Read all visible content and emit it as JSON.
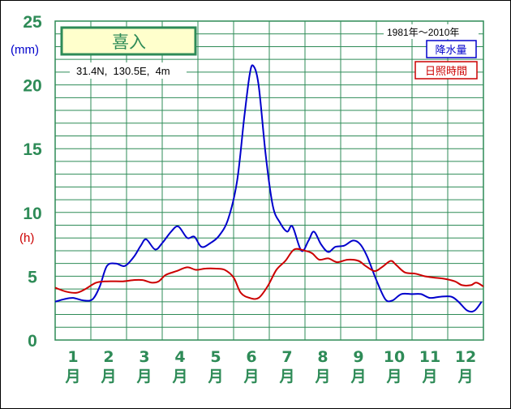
{
  "chart_data": {
    "type": "line",
    "station": "喜入",
    "coordinates": "31.4N,  130.5E,  4m",
    "period": "1981年～2010年",
    "y_unit_primary": "(mm)",
    "y_unit_secondary": "(h)",
    "ylim": [
      0,
      25
    ],
    "y_ticks": [
      "0",
      "5",
      "10",
      "15",
      "20",
      "25"
    ],
    "categories": [
      "1月",
      "2月",
      "3月",
      "4月",
      "5月",
      "6月",
      "7月",
      "8月",
      "9月",
      "10月",
      "11月",
      "12月"
    ],
    "month_numbers": [
      "1",
      "2",
      "3",
      "4",
      "5",
      "6",
      "7",
      "8",
      "9",
      "10",
      "11",
      "12"
    ],
    "month_suffix": "月",
    "x_domain": [
      0.5,
      12.5
    ],
    "grid": true,
    "legend_position": "top-right",
    "series": [
      {
        "name": "降水量",
        "color": "#0000cc",
        "points": [
          [
            0.5,
            3.0
          ],
          [
            0.75,
            3.2
          ],
          [
            1.0,
            3.3
          ],
          [
            1.3,
            3.1
          ],
          [
            1.55,
            3.2
          ],
          [
            1.75,
            4.2
          ],
          [
            1.95,
            5.8
          ],
          [
            2.2,
            6.0
          ],
          [
            2.45,
            5.8
          ],
          [
            2.7,
            6.5
          ],
          [
            2.9,
            7.4
          ],
          [
            3.05,
            7.9
          ],
          [
            3.3,
            7.1
          ],
          [
            3.5,
            7.6
          ],
          [
            3.75,
            8.5
          ],
          [
            3.95,
            8.9
          ],
          [
            4.2,
            8.0
          ],
          [
            4.4,
            8.1
          ],
          [
            4.6,
            7.3
          ],
          [
            4.85,
            7.6
          ],
          [
            5.1,
            8.2
          ],
          [
            5.35,
            9.5
          ],
          [
            5.6,
            12.5
          ],
          [
            5.8,
            17.5
          ],
          [
            5.95,
            20.8
          ],
          [
            6.05,
            21.5
          ],
          [
            6.2,
            20.0
          ],
          [
            6.4,
            14.5
          ],
          [
            6.6,
            10.5
          ],
          [
            6.8,
            9.2
          ],
          [
            7.0,
            8.5
          ],
          [
            7.15,
            8.9
          ],
          [
            7.4,
            7.0
          ],
          [
            7.6,
            7.8
          ],
          [
            7.75,
            8.5
          ],
          [
            7.95,
            7.5
          ],
          [
            8.15,
            6.9
          ],
          [
            8.35,
            7.3
          ],
          [
            8.6,
            7.4
          ],
          [
            8.85,
            7.8
          ],
          [
            9.05,
            7.5
          ],
          [
            9.25,
            6.5
          ],
          [
            9.5,
            4.7
          ],
          [
            9.75,
            3.2
          ],
          [
            9.95,
            3.1
          ],
          [
            10.2,
            3.6
          ],
          [
            10.5,
            3.6
          ],
          [
            10.75,
            3.6
          ],
          [
            11.0,
            3.3
          ],
          [
            11.3,
            3.4
          ],
          [
            11.6,
            3.4
          ],
          [
            11.8,
            3.0
          ],
          [
            12.05,
            2.3
          ],
          [
            12.25,
            2.3
          ],
          [
            12.45,
            3.0
          ]
        ]
      },
      {
        "name": "日照時間",
        "color": "#cc0000",
        "points": [
          [
            0.5,
            4.1
          ],
          [
            0.8,
            3.8
          ],
          [
            1.1,
            3.7
          ],
          [
            1.35,
            4.0
          ],
          [
            1.65,
            4.5
          ],
          [
            1.95,
            4.6
          ],
          [
            2.4,
            4.6
          ],
          [
            2.7,
            4.7
          ],
          [
            2.95,
            4.7
          ],
          [
            3.2,
            4.5
          ],
          [
            3.4,
            4.6
          ],
          [
            3.6,
            5.1
          ],
          [
            3.9,
            5.4
          ],
          [
            4.2,
            5.7
          ],
          [
            4.45,
            5.5
          ],
          [
            4.7,
            5.6
          ],
          [
            5.0,
            5.6
          ],
          [
            5.25,
            5.5
          ],
          [
            5.5,
            4.9
          ],
          [
            5.7,
            3.7
          ],
          [
            5.95,
            3.3
          ],
          [
            6.2,
            3.3
          ],
          [
            6.45,
            4.2
          ],
          [
            6.7,
            5.5
          ],
          [
            6.95,
            6.2
          ],
          [
            7.2,
            7.1
          ],
          [
            7.5,
            7.0
          ],
          [
            7.7,
            6.8
          ],
          [
            7.9,
            6.3
          ],
          [
            8.15,
            6.4
          ],
          [
            8.4,
            6.1
          ],
          [
            8.7,
            6.3
          ],
          [
            9.0,
            6.2
          ],
          [
            9.2,
            5.8
          ],
          [
            9.45,
            5.4
          ],
          [
            9.65,
            5.7
          ],
          [
            9.9,
            6.2
          ],
          [
            10.05,
            5.9
          ],
          [
            10.3,
            5.3
          ],
          [
            10.6,
            5.2
          ],
          [
            10.85,
            5.0
          ],
          [
            11.1,
            4.9
          ],
          [
            11.4,
            4.8
          ],
          [
            11.7,
            4.6
          ],
          [
            11.9,
            4.3
          ],
          [
            12.15,
            4.3
          ],
          [
            12.3,
            4.5
          ],
          [
            12.5,
            4.2
          ]
        ]
      }
    ]
  }
}
